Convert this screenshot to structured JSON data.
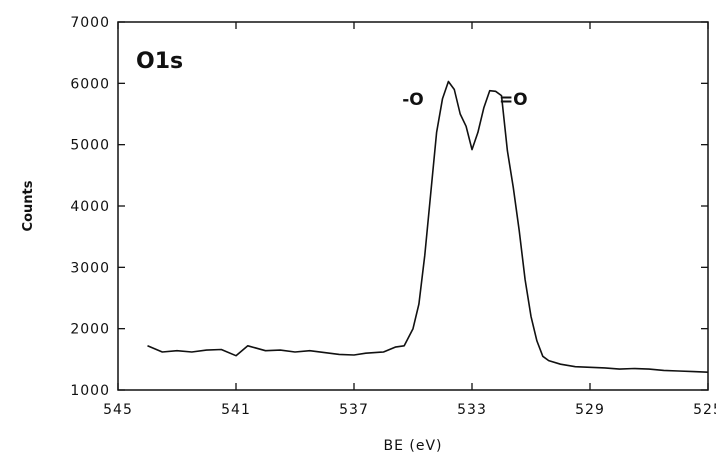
{
  "chart_data": {
    "type": "line",
    "title": "O1s",
    "xlabel": "BE (eV)",
    "ylabel": "Counts",
    "xlim": [
      545,
      525
    ],
    "ylim": [
      1000,
      7000
    ],
    "x_reversed": true,
    "grid": false,
    "x_ticks": [
      545,
      541,
      537,
      533,
      529,
      525
    ],
    "y_ticks": [
      1000,
      2000,
      3000,
      4000,
      5000,
      6000,
      7000
    ],
    "annotations": [
      {
        "text": "-O",
        "x": 535.0,
        "y": 5650
      },
      {
        "text": "=O",
        "x": 531.6,
        "y": 5650
      }
    ],
    "series": [
      {
        "color": "#111111",
        "x": [
          544.0,
          543.5,
          543.0,
          542.5,
          542.0,
          541.5,
          541.0,
          540.6,
          540.0,
          539.5,
          539.0,
          538.5,
          538.0,
          537.5,
          537.0,
          536.6,
          536.0,
          535.6,
          535.3,
          535.0,
          534.8,
          534.6,
          534.4,
          534.2,
          534.0,
          533.8,
          533.6,
          533.4,
          533.2,
          533.0,
          532.8,
          532.6,
          532.4,
          532.2,
          532.0,
          531.8,
          531.6,
          531.4,
          531.2,
          531.0,
          530.8,
          530.6,
          530.4,
          530.0,
          529.5,
          529.0,
          528.5,
          528.0,
          527.5,
          527.0,
          526.5,
          526.0,
          525.5,
          525.0
        ],
        "y": [
          1720,
          1620,
          1640,
          1620,
          1650,
          1660,
          1560,
          1720,
          1640,
          1650,
          1620,
          1640,
          1610,
          1580,
          1570,
          1600,
          1620,
          1700,
          1720,
          2000,
          2400,
          3200,
          4200,
          5200,
          5750,
          6030,
          5900,
          5500,
          5300,
          4920,
          5200,
          5600,
          5880,
          5870,
          5800,
          4900,
          4300,
          3600,
          2800,
          2200,
          1800,
          1550,
          1480,
          1420,
          1380,
          1370,
          1360,
          1340,
          1350,
          1340,
          1320,
          1310,
          1300,
          1290
        ]
      }
    ]
  }
}
